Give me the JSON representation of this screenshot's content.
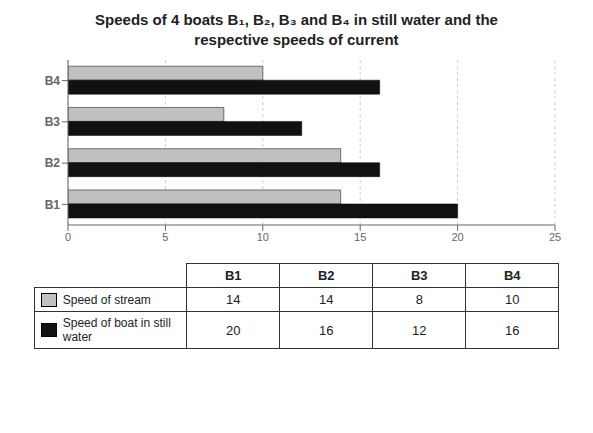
{
  "chart_data": {
    "type": "bar",
    "title": "Speeds of 4 boats B₁, B₂, B₃ and B₄ in still water and the respective speeds of current",
    "orientation": "horizontal",
    "categories": [
      "B1",
      "B2",
      "B3",
      "B4"
    ],
    "series": [
      {
        "name": "Speed of stream",
        "color": "#c0c0c0",
        "values": [
          14,
          14,
          8,
          10
        ]
      },
      {
        "name": "Speed of boat in still water",
        "color": "#111111",
        "values": [
          20,
          16,
          12,
          16
        ]
      }
    ],
    "xlim": [
      0,
      25
    ],
    "xticks": [
      0,
      5,
      10,
      15,
      20,
      25
    ],
    "grid": true
  }
}
